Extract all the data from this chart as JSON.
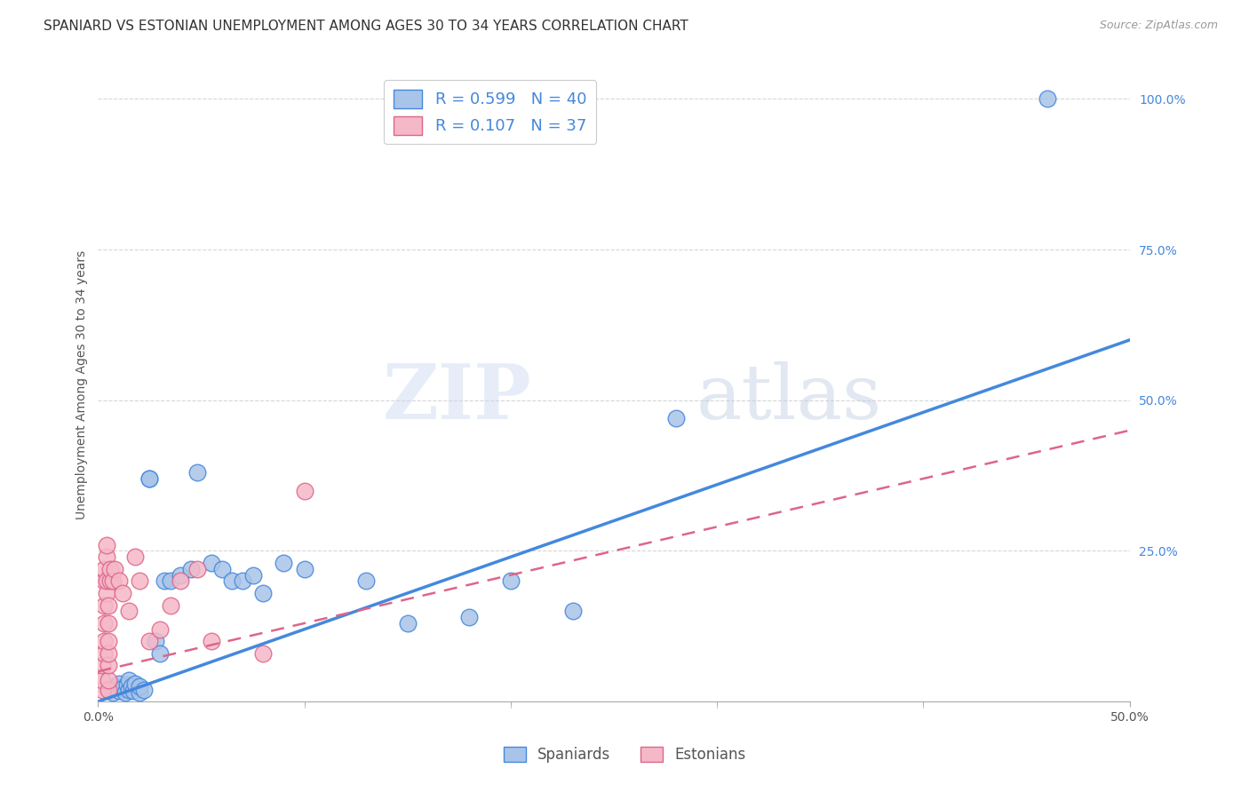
{
  "title": "SPANIARD VS ESTONIAN UNEMPLOYMENT AMONG AGES 30 TO 34 YEARS CORRELATION CHART",
  "source": "Source: ZipAtlas.com",
  "ylabel": "Unemployment Among Ages 30 to 34 years",
  "xlim": [
    0.0,
    0.5
  ],
  "ylim": [
    0.0,
    1.05
  ],
  "xticks": [
    0.0,
    0.5
  ],
  "xtick_labels": [
    "0.0%",
    "50.0%"
  ],
  "xticks_minor": [
    0.1,
    0.2,
    0.3,
    0.4
  ],
  "yticks": [
    0.0,
    0.25,
    0.5,
    0.75,
    1.0
  ],
  "ytick_labels": [
    "",
    "25.0%",
    "50.0%",
    "75.0%",
    "100.0%"
  ],
  "grid_color": "#cccccc",
  "background_color": "#ffffff",
  "watermark_zip": "ZIP",
  "watermark_atlas": "atlas",
  "spaniard_color": "#a8c4e8",
  "estonian_color": "#f5b8c8",
  "spaniard_line_color": "#4488dd",
  "estonian_line_color": "#dd6688",
  "title_fontsize": 11,
  "axis_fontsize": 10,
  "tick_fontsize": 10,
  "spaniard_x": [
    0.005,
    0.007,
    0.008,
    0.01,
    0.01,
    0.012,
    0.013,
    0.014,
    0.015,
    0.015,
    0.016,
    0.017,
    0.018,
    0.02,
    0.02,
    0.022,
    0.025,
    0.025,
    0.028,
    0.03,
    0.032,
    0.035,
    0.04,
    0.045,
    0.048,
    0.055,
    0.06,
    0.065,
    0.07,
    0.075,
    0.08,
    0.09,
    0.1,
    0.13,
    0.15,
    0.18,
    0.2,
    0.23,
    0.28,
    0.46
  ],
  "spaniard_y": [
    0.02,
    0.015,
    0.025,
    0.018,
    0.03,
    0.022,
    0.015,
    0.028,
    0.02,
    0.035,
    0.025,
    0.018,
    0.03,
    0.015,
    0.025,
    0.02,
    0.37,
    0.37,
    0.1,
    0.08,
    0.2,
    0.2,
    0.21,
    0.22,
    0.38,
    0.23,
    0.22,
    0.2,
    0.2,
    0.21,
    0.18,
    0.23,
    0.22,
    0.2,
    0.13,
    0.14,
    0.2,
    0.15,
    0.47,
    1.0
  ],
  "estonian_x": [
    0.002,
    0.002,
    0.002,
    0.003,
    0.003,
    0.003,
    0.003,
    0.003,
    0.003,
    0.004,
    0.004,
    0.004,
    0.004,
    0.005,
    0.005,
    0.005,
    0.005,
    0.005,
    0.005,
    0.005,
    0.006,
    0.006,
    0.007,
    0.008,
    0.01,
    0.012,
    0.015,
    0.018,
    0.02,
    0.025,
    0.03,
    0.035,
    0.04,
    0.048,
    0.055,
    0.08,
    0.1
  ],
  "estonian_y": [
    0.02,
    0.035,
    0.06,
    0.08,
    0.1,
    0.13,
    0.16,
    0.2,
    0.22,
    0.24,
    0.26,
    0.18,
    0.2,
    0.02,
    0.035,
    0.06,
    0.08,
    0.1,
    0.13,
    0.16,
    0.2,
    0.22,
    0.2,
    0.22,
    0.2,
    0.18,
    0.15,
    0.24,
    0.2,
    0.1,
    0.12,
    0.16,
    0.2,
    0.22,
    0.1,
    0.08,
    0.35
  ],
  "sp_line_x0": 0.0,
  "sp_line_y0": 0.0,
  "sp_line_x1": 0.5,
  "sp_line_y1": 0.6,
  "es_line_x0": 0.0,
  "es_line_y0": 0.05,
  "es_line_x1": 0.5,
  "es_line_y1": 0.45
}
